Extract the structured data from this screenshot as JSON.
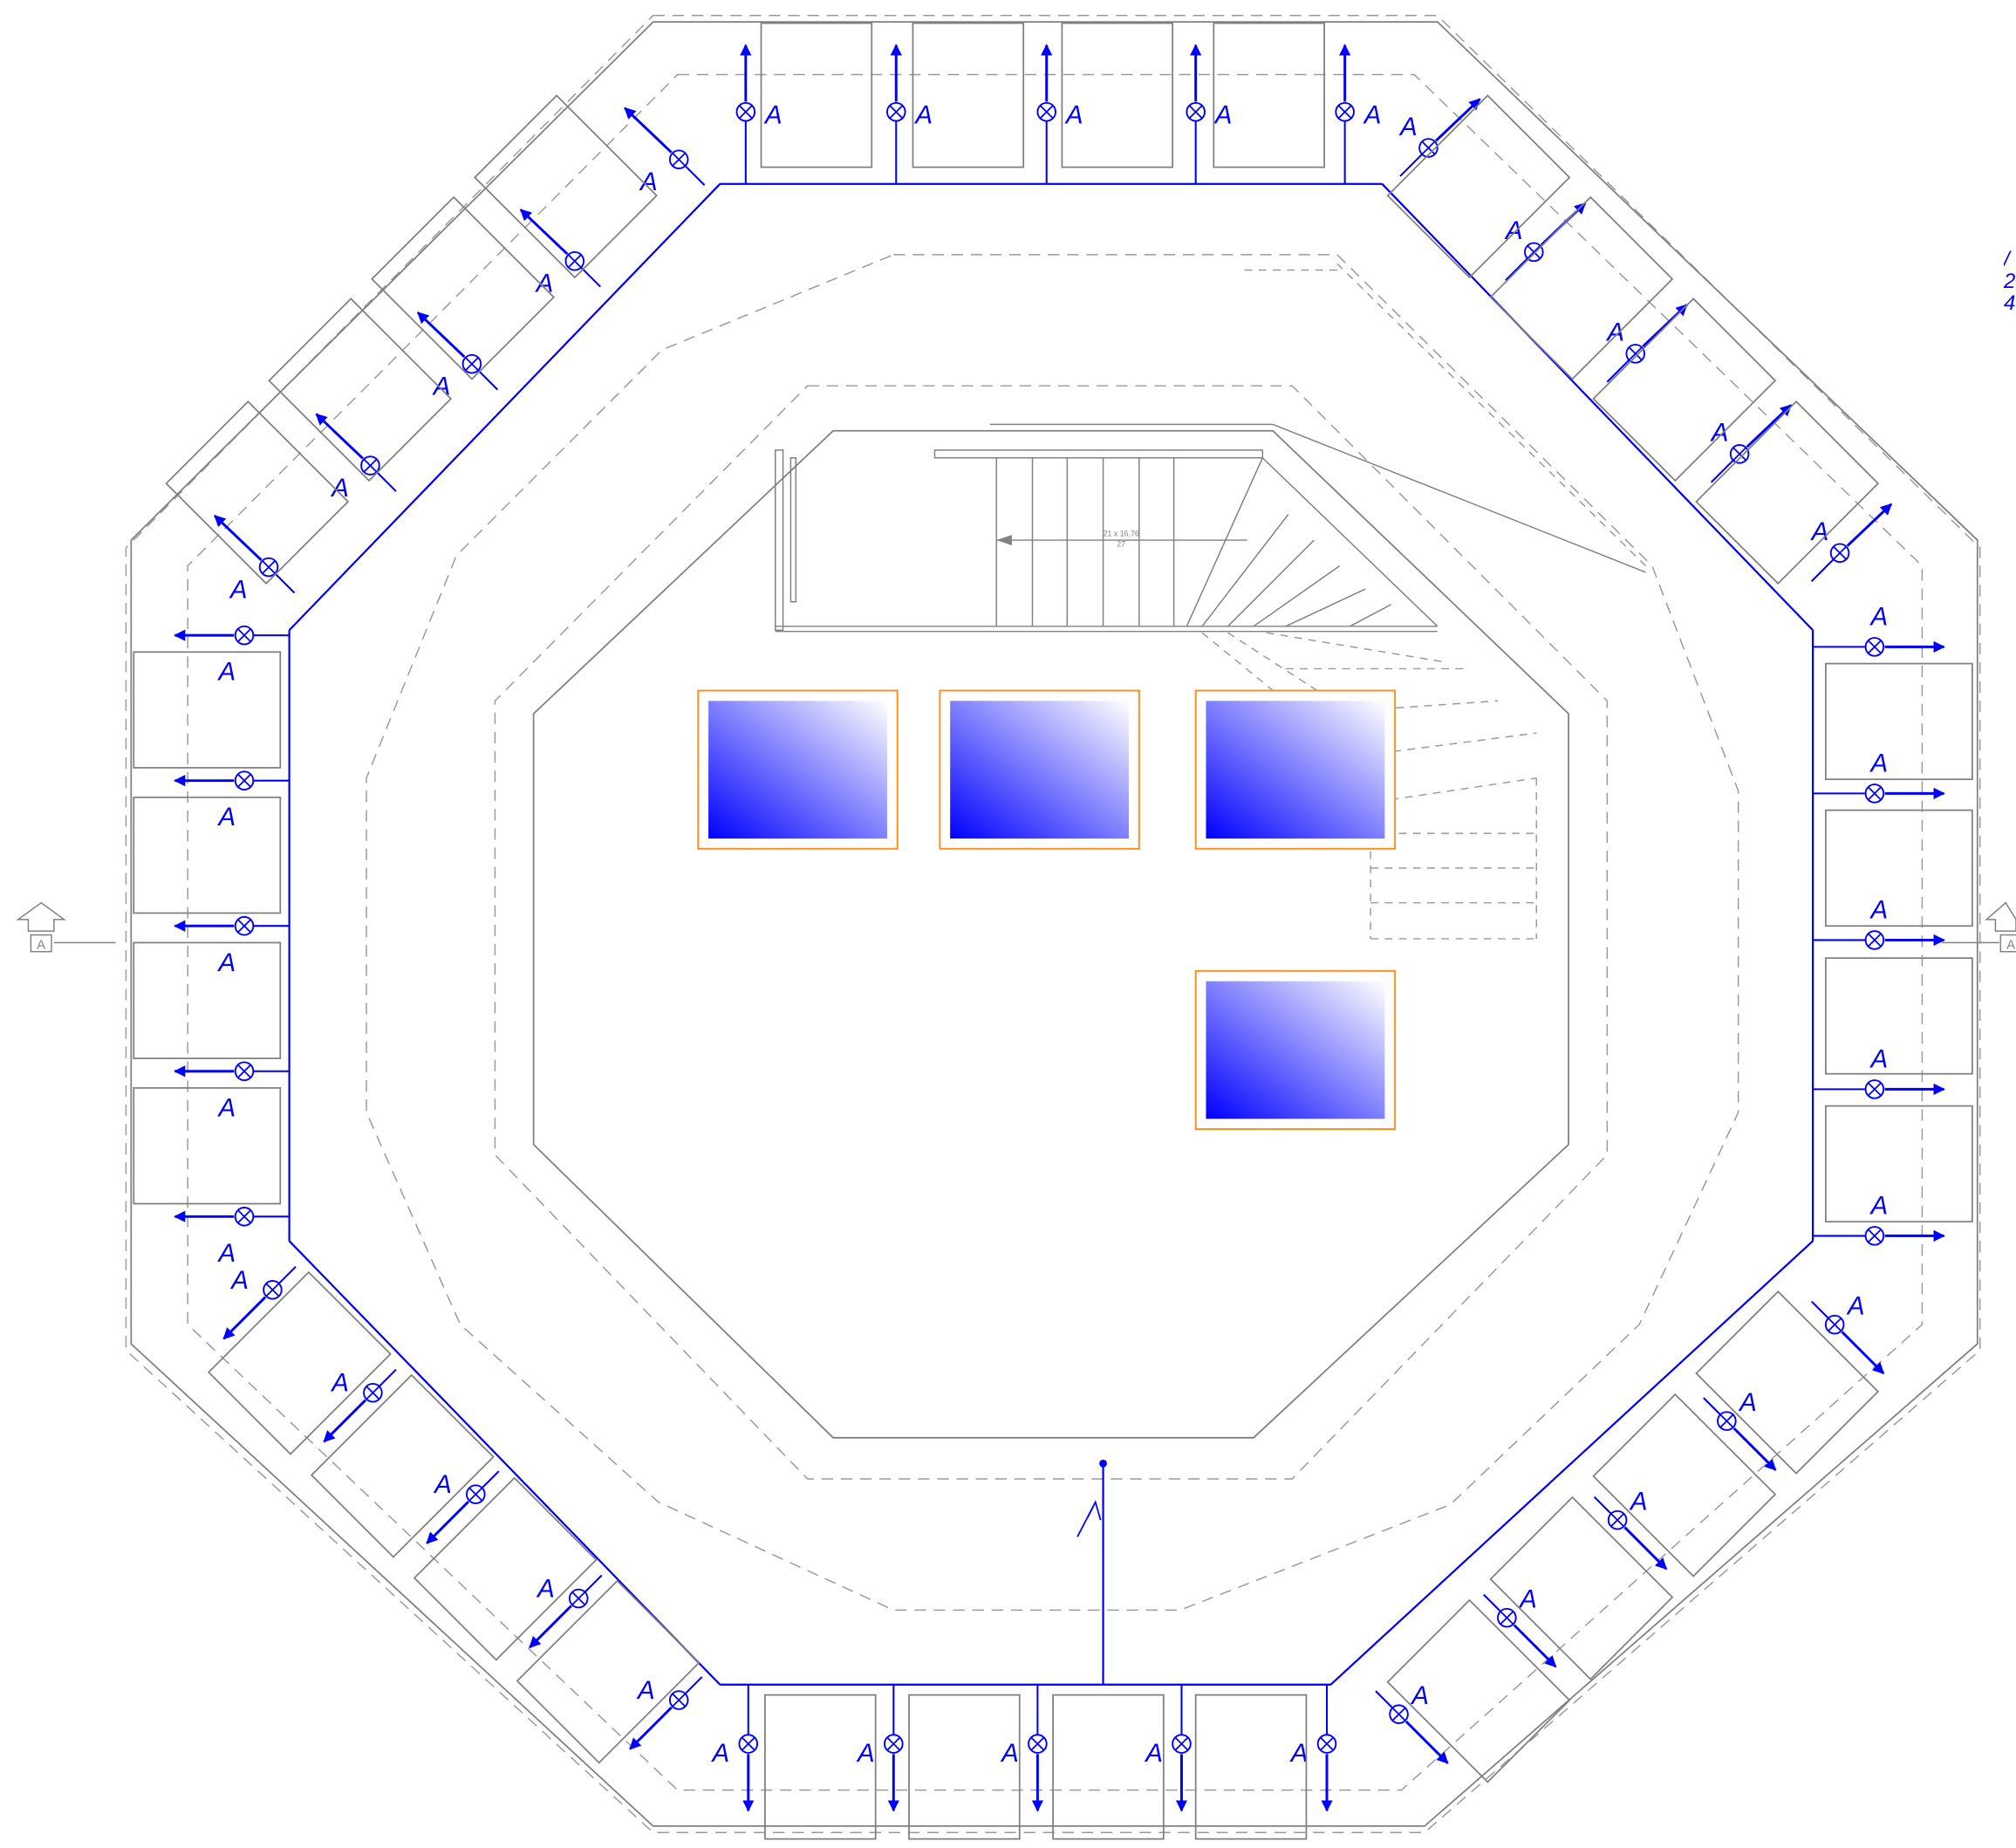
{
  "fixture_label": "A",
  "section_marker_label": "A",
  "stair_note": {
    "line1": "21 x 16,76",
    "line2": "27"
  },
  "edge_text": [
    "/",
    "2",
    "4"
  ],
  "colors": {
    "wire": "#0000ff",
    "wall": "#808080",
    "skylight_frame": "#ff8c1a",
    "skylight_fill_top": "#ffffff",
    "skylight_fill_bottom": "#0000ff",
    "background": "#ffffff"
  }
}
